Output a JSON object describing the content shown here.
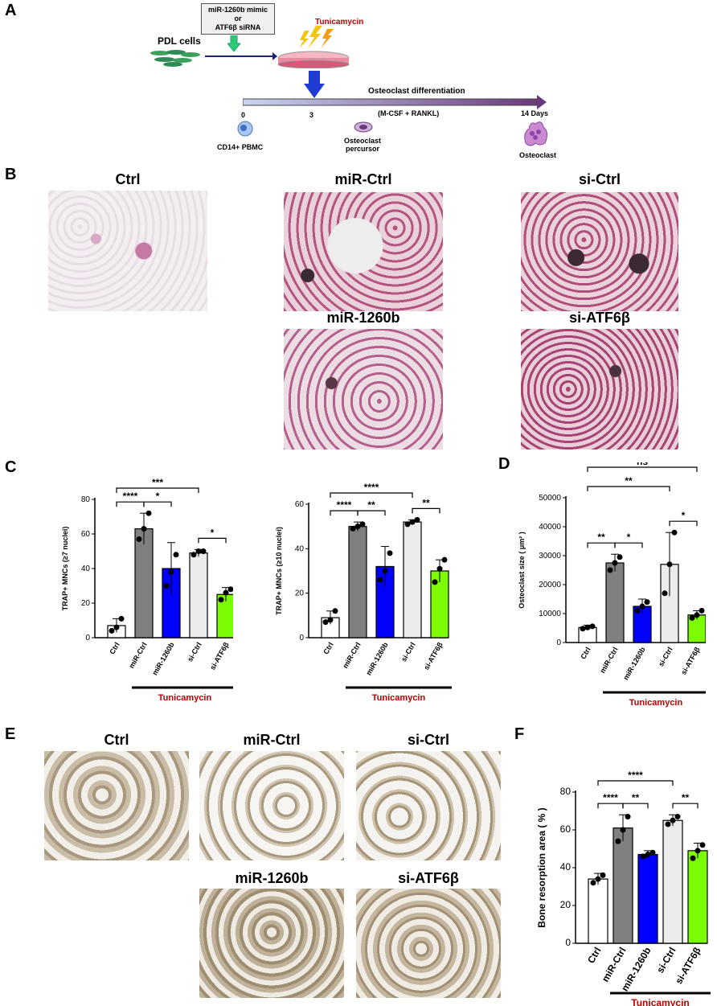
{
  "panels": {
    "a": "A",
    "b": "B",
    "c": "C",
    "d": "D",
    "e": "E",
    "f": "F"
  },
  "schematic": {
    "pdl": "PDL cells",
    "transfect_line1": "miR-1260b mimic",
    "transfect_line2": "or",
    "transfect_line3": "ATF6β siRNA",
    "tunicamycin": "Tunicamycin",
    "diff": "Osteoclast differentiation",
    "mcsf": "(M-CSF + RANKL)",
    "day0": "0",
    "day3": "3",
    "day14": "14 Days",
    "pbmc": "CD14+ PBMC",
    "precursor1": "Osteoclast",
    "precursor2": "percursor",
    "osteoclast": "Osteoclast"
  },
  "trap_titles": [
    "Ctrl",
    "miR-Ctrl",
    "si-Ctrl",
    "miR-1260b",
    "si-ATF6β"
  ],
  "pit_titles": [
    "Ctrl",
    "miR-Ctrl",
    "si-Ctrl",
    "miR-1260b",
    "si-ATF6β"
  ],
  "treatment_label": "Tunicamycin",
  "colors": {
    "ctrl": "#ffffff",
    "mirctrl": "#808080",
    "mir1260b": "#0000ff",
    "sictrl": "#ececec",
    "siatf6b": "#7cfc00",
    "accent": "#c00000"
  },
  "chart_data": [
    {
      "type": "bar",
      "categories": [
        "Ctrl",
        "miR-Ctrl",
        "miR-1260b",
        "si-Ctrl",
        "si-ATF6β"
      ],
      "values": [
        7,
        63,
        40,
        49,
        25
      ],
      "errors": [
        4,
        9,
        15,
        2,
        4
      ],
      "points": [
        [
          4,
          6,
          11
        ],
        [
          57,
          63,
          72
        ],
        [
          30,
          38,
          48
        ],
        [
          48,
          50,
          50
        ],
        [
          22,
          26,
          28
        ]
      ],
      "ylabel": "TRAP+ MNCs (≥7 nuclei)",
      "yticks": [
        0,
        20,
        40,
        60,
        80
      ],
      "ylim": [
        0,
        80
      ],
      "significance": [
        {
          "from": 0,
          "to": 1,
          "label": "****"
        },
        {
          "from": 1,
          "to": 2,
          "label": "*"
        },
        {
          "from": 3,
          "to": 4,
          "label": "*"
        },
        {
          "from": 0,
          "to": 3,
          "label": "***"
        }
      ]
    },
    {
      "type": "bar",
      "categories": [
        "Ctrl",
        "miR-Ctrl",
        "miR-1260b",
        "si-Ctrl",
        "si-ATF6β"
      ],
      "values": [
        9,
        50,
        32,
        52,
        30
      ],
      "errors": [
        3,
        2,
        9,
        1,
        5
      ],
      "points": [
        [
          7,
          8,
          12
        ],
        [
          49,
          50,
          51
        ],
        [
          26,
          30,
          38
        ],
        [
          51,
          52,
          53
        ],
        [
          25,
          31,
          35
        ]
      ],
      "ylabel": "TRAP+ MNCs (≥10 nuclei)",
      "yticks": [
        0,
        20,
        40,
        60
      ],
      "ylim": [
        0,
        60
      ],
      "significance": [
        {
          "from": 0,
          "to": 1,
          "label": "****"
        },
        {
          "from": 1,
          "to": 2,
          "label": "**"
        },
        {
          "from": 3,
          "to": 4,
          "label": "**"
        },
        {
          "from": 0,
          "to": 3,
          "label": "****"
        }
      ]
    },
    {
      "type": "bar",
      "categories": [
        "Ctrl",
        "miR-Ctrl",
        "miR-1260b",
        "si-Ctrl",
        "si-ATF6β"
      ],
      "values": [
        5200,
        27500,
        12500,
        27000,
        9500
      ],
      "errors": [
        800,
        3000,
        2500,
        11000,
        1500
      ],
      "points": [
        [
          4800,
          5200,
          5600
        ],
        [
          25000,
          27500,
          29500
        ],
        [
          11000,
          12500,
          14000
        ],
        [
          17000,
          27000,
          38000
        ],
        [
          8500,
          9500,
          11000
        ]
      ],
      "ylabel": "Osteoclast size ( μm² )",
      "yticks": [
        0,
        10000,
        20000,
        30000,
        40000,
        50000
      ],
      "ylim": [
        0,
        50000
      ],
      "significance": [
        {
          "from": 0,
          "to": 1,
          "label": "**"
        },
        {
          "from": 1,
          "to": 2,
          "label": "*"
        },
        {
          "from": 3,
          "to": 4,
          "label": "*"
        },
        {
          "from": 0,
          "to": 3,
          "label": "**"
        },
        {
          "from": 0,
          "to": 4,
          "label": "ns"
        }
      ]
    },
    {
      "type": "bar",
      "categories": [
        "Ctrl",
        "miR-Ctrl",
        "miR-1260b",
        "si-Ctrl",
        "si-ATF6β"
      ],
      "values": [
        34,
        61,
        47,
        65,
        49
      ],
      "errors": [
        3,
        7,
        2,
        3,
        4
      ],
      "points": [
        [
          32,
          34,
          36
        ],
        [
          54,
          60,
          67
        ],
        [
          46,
          47,
          48
        ],
        [
          63,
          65,
          67
        ],
        [
          45,
          49,
          52
        ]
      ],
      "ylabel": "Bone resorption area ( % )",
      "yticks": [
        0,
        20,
        40,
        60,
        80
      ],
      "ylim": [
        0,
        80
      ],
      "significance": [
        {
          "from": 0,
          "to": 1,
          "label": "****"
        },
        {
          "from": 1,
          "to": 2,
          "label": "**"
        },
        {
          "from": 3,
          "to": 4,
          "label": "**"
        },
        {
          "from": 0,
          "to": 3,
          "label": "****"
        }
      ]
    }
  ]
}
